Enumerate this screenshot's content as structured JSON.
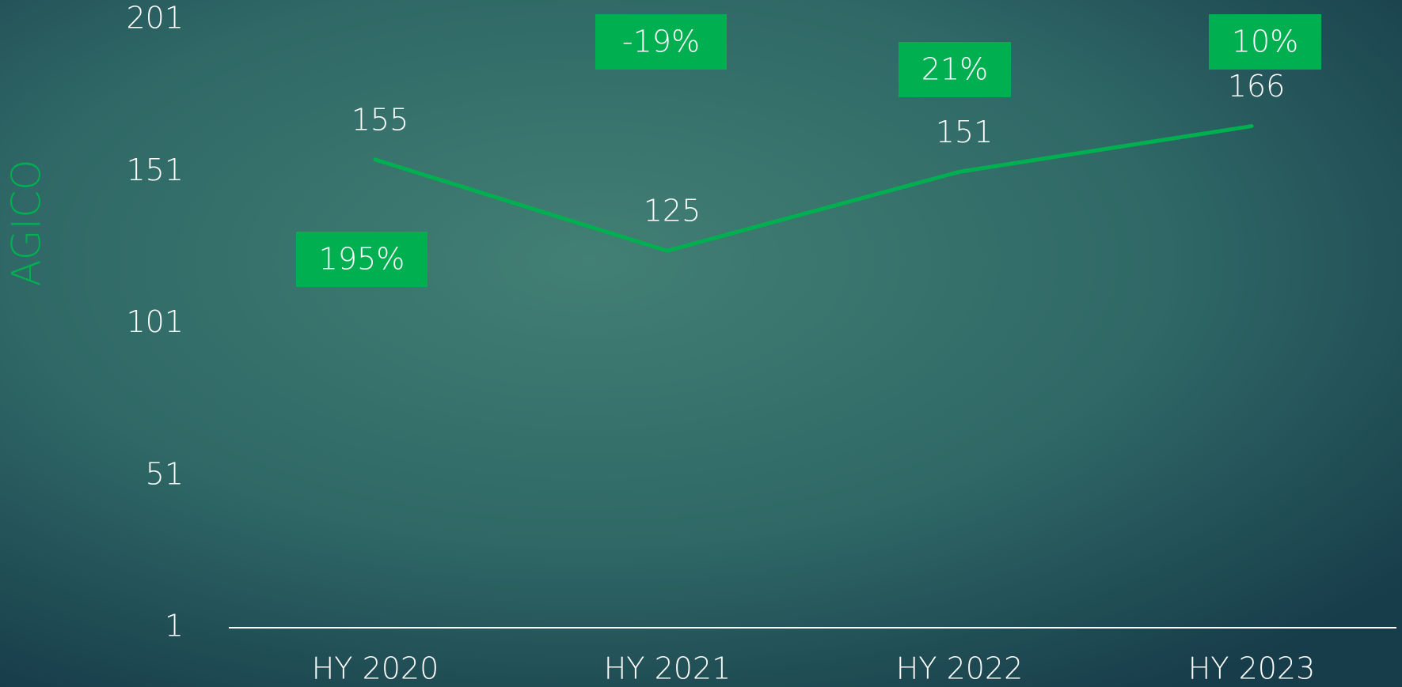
{
  "chart_data": {
    "type": "line",
    "y_label": "AGICO",
    "categories": [
      "HY 2020",
      "HY 2021",
      "HY 2022",
      "HY 2023"
    ],
    "series": [
      {
        "name": "AGICO",
        "color": "#00b050",
        "values": [
          155,
          125,
          151,
          166
        ]
      }
    ],
    "annotations": [
      "195%",
      "-19%",
      "21%",
      "10%"
    ],
    "annotation_color": "#00b050",
    "ylim": [
      1,
      201
    ],
    "yticks": [
      1,
      51,
      101,
      151,
      201
    ]
  }
}
